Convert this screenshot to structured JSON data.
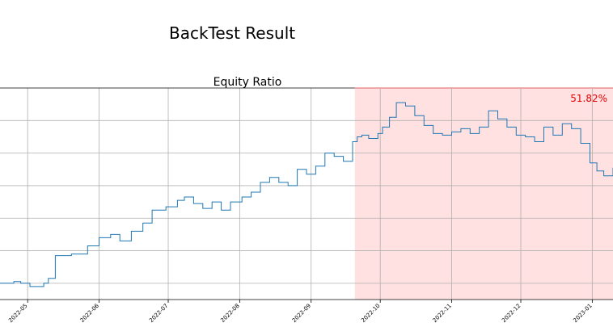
{
  "figure": {
    "title": "BackTest Result"
  },
  "chart_data": {
    "type": "line",
    "title": "Equity Ratio",
    "xlabel": "",
    "ylabel": "",
    "x_tick_labels": [
      "2022-05",
      "2022-06",
      "2022-07",
      "2022-08",
      "2022-09",
      "2022-10",
      "2022-11",
      "2022-12",
      "2023-01"
    ],
    "x_range": [
      "2022-04-19",
      "2023-01-10"
    ],
    "grid": true,
    "annotation": "51.82%",
    "annotation_color": "#e60000",
    "highlight_span": {
      "start": "2022-09-20",
      "end": "2023-01-10",
      "color": "#ffe1e1",
      "edge_color": "#e06060"
    },
    "series": [
      {
        "color": "#1f77b4",
        "points": [
          [
            "2022-04-19",
            0.8
          ],
          [
            "2022-04-25",
            0.81
          ],
          [
            "2022-04-28",
            0.8
          ],
          [
            "2022-05-02",
            0.78
          ],
          [
            "2022-05-08",
            0.8
          ],
          [
            "2022-05-10",
            0.83
          ],
          [
            "2022-05-13",
            0.97
          ],
          [
            "2022-05-20",
            0.98
          ],
          [
            "2022-05-27",
            1.03
          ],
          [
            "2022-06-01",
            1.08
          ],
          [
            "2022-06-06",
            1.1
          ],
          [
            "2022-06-10",
            1.06
          ],
          [
            "2022-06-15",
            1.12
          ],
          [
            "2022-06-20",
            1.17
          ],
          [
            "2022-06-24",
            1.25
          ],
          [
            "2022-06-30",
            1.27
          ],
          [
            "2022-07-05",
            1.31
          ],
          [
            "2022-07-08",
            1.33
          ],
          [
            "2022-07-12",
            1.29
          ],
          [
            "2022-07-16",
            1.26
          ],
          [
            "2022-07-20",
            1.3
          ],
          [
            "2022-07-24",
            1.25
          ],
          [
            "2022-07-28",
            1.3
          ],
          [
            "2022-08-02",
            1.33
          ],
          [
            "2022-08-06",
            1.36
          ],
          [
            "2022-08-10",
            1.42
          ],
          [
            "2022-08-14",
            1.45
          ],
          [
            "2022-08-18",
            1.42
          ],
          [
            "2022-08-22",
            1.4
          ],
          [
            "2022-08-26",
            1.5
          ],
          [
            "2022-08-30",
            1.47
          ],
          [
            "2022-09-03",
            1.52
          ],
          [
            "2022-09-07",
            1.6
          ],
          [
            "2022-09-11",
            1.58
          ],
          [
            "2022-09-15",
            1.55
          ],
          [
            "2022-09-19",
            1.67
          ],
          [
            "2022-09-21",
            1.7
          ],
          [
            "2022-09-23",
            1.71
          ],
          [
            "2022-09-26",
            1.69
          ],
          [
            "2022-09-30",
            1.72
          ],
          [
            "2022-10-02",
            1.76
          ],
          [
            "2022-10-05",
            1.82
          ],
          [
            "2022-10-08",
            1.91
          ],
          [
            "2022-10-12",
            1.89
          ],
          [
            "2022-10-16",
            1.83
          ],
          [
            "2022-10-20",
            1.77
          ],
          [
            "2022-10-24",
            1.72
          ],
          [
            "2022-10-28",
            1.71
          ],
          [
            "2022-11-01",
            1.73
          ],
          [
            "2022-11-05",
            1.75
          ],
          [
            "2022-11-09",
            1.72
          ],
          [
            "2022-11-13",
            1.76
          ],
          [
            "2022-11-17",
            1.86
          ],
          [
            "2022-11-21",
            1.81
          ],
          [
            "2022-11-25",
            1.76
          ],
          [
            "2022-11-29",
            1.71
          ],
          [
            "2022-12-03",
            1.7
          ],
          [
            "2022-12-07",
            1.67
          ],
          [
            "2022-12-11",
            1.76
          ],
          [
            "2022-12-15",
            1.71
          ],
          [
            "2022-12-19",
            1.78
          ],
          [
            "2022-12-23",
            1.75
          ],
          [
            "2022-12-27",
            1.66
          ],
          [
            "2022-12-31",
            1.54
          ],
          [
            "2023-01-03",
            1.49
          ],
          [
            "2023-01-06",
            1.46
          ],
          [
            "2023-01-09",
            1.46
          ],
          [
            "2023-01-10",
            1.51
          ]
        ]
      }
    ]
  }
}
